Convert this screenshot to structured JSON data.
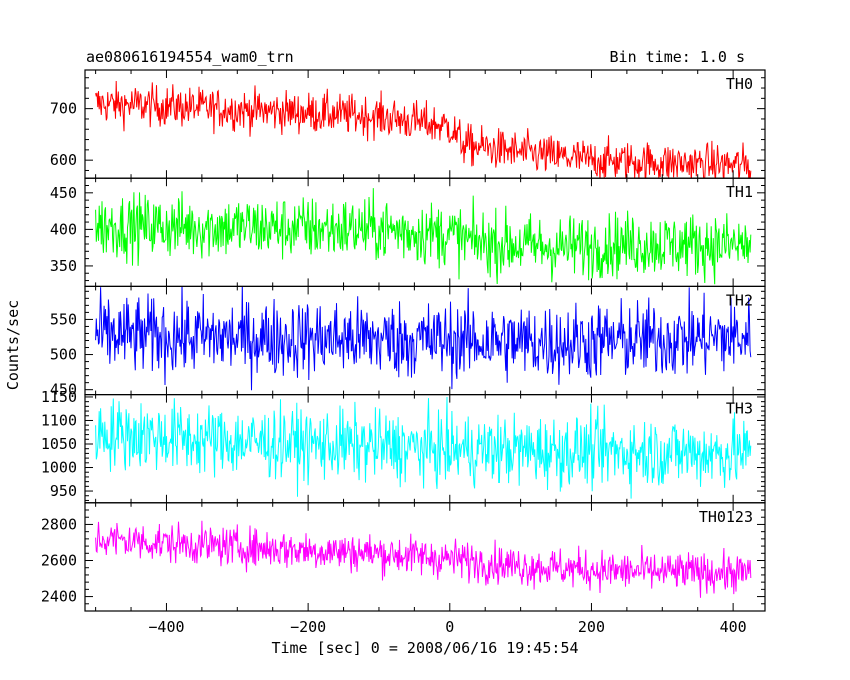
{
  "chart_data": {
    "type": "line",
    "title": "ae080616194554_wam0_trn",
    "subtitle": "Bin time: 1.0 s",
    "xlabel": "Time [sec] 0 = 2008/06/16 19:45:54",
    "ylabel": "Counts/sec",
    "xlim": [
      -515,
      445
    ],
    "xticks": [
      -400,
      -200,
      0,
      200,
      400
    ],
    "x_start": -500,
    "x_end": 425,
    "x_step": 1,
    "grid": false,
    "legend": "none",
    "panels": [
      {
        "name": "TH0",
        "color": "#ff0000",
        "ylim": [
          565,
          775
        ],
        "yticks": [
          600,
          700
        ],
        "trend": [
          [
            -500,
            710
          ],
          [
            -400,
            705
          ],
          [
            -300,
            698
          ],
          [
            -200,
            692
          ],
          [
            -100,
            685
          ],
          [
            0,
            665
          ],
          [
            20,
            630
          ],
          [
            100,
            615
          ],
          [
            200,
            600
          ],
          [
            300,
            595
          ],
          [
            425,
            590
          ]
        ],
        "noise": 20
      },
      {
        "name": "TH1",
        "color": "#00ff00",
        "ylim": [
          322,
          470
        ],
        "yticks": [
          350,
          400,
          450
        ],
        "trend": [
          [
            -500,
            405
          ],
          [
            -300,
            403
          ],
          [
            -100,
            400
          ],
          [
            0,
            393
          ],
          [
            30,
            383
          ],
          [
            150,
            375
          ],
          [
            250,
            380
          ],
          [
            425,
            378
          ]
        ],
        "noise": 22
      },
      {
        "name": "TH2",
        "color": "#0000ff",
        "ylim": [
          443,
          597
        ],
        "yticks": [
          450,
          500,
          550
        ],
        "trend": [
          [
            -500,
            528
          ],
          [
            -300,
            524
          ],
          [
            -100,
            522
          ],
          [
            0,
            520
          ],
          [
            150,
            517
          ],
          [
            300,
            522
          ],
          [
            425,
            525
          ]
        ],
        "noise": 28
      },
      {
        "name": "TH3",
        "color": "#00ffff",
        "ylim": [
          925,
          1155
        ],
        "yticks": [
          950,
          1000,
          1050,
          1100,
          1150
        ],
        "trend": [
          [
            -500,
            1075
          ],
          [
            -300,
            1055
          ],
          [
            -100,
            1045
          ],
          [
            0,
            1038
          ],
          [
            200,
            1035
          ],
          [
            425,
            1030
          ]
        ],
        "noise": 38
      },
      {
        "name": "TH0123",
        "color": "#ff00ff",
        "ylim": [
          2320,
          2920
        ],
        "yticks": [
          2400,
          2600,
          2800
        ],
        "trend": [
          [
            -500,
            2720
          ],
          [
            -300,
            2675
          ],
          [
            -100,
            2640
          ],
          [
            0,
            2610
          ],
          [
            100,
            2570
          ],
          [
            250,
            2540
          ],
          [
            425,
            2530
          ]
        ],
        "noise": 55
      }
    ]
  }
}
